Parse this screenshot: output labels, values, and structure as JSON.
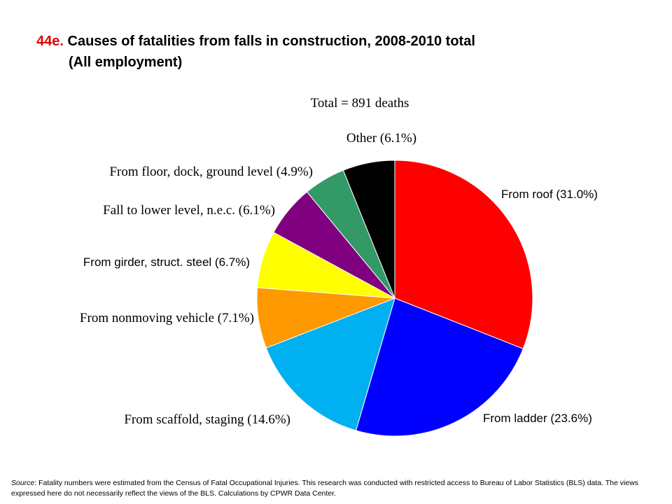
{
  "header": {
    "title_number": "44e.",
    "title_line1": "Causes of fatalities from falls in construction, 2008-2010 total",
    "title_line2": "(All employment)"
  },
  "chart_data": {
    "type": "pie",
    "title": "44e. Causes of fatalities from falls in construction, 2008-2010 total (All employment)",
    "subtitle": "Total = 891 deaths",
    "slices": [
      {
        "label": "From roof (31.0%)",
        "value": 31.0,
        "color": "#ff0000"
      },
      {
        "label": "From ladder (23.6%)",
        "value": 23.6,
        "color": "#0000ff"
      },
      {
        "label": "From scaffold, staging (14.6%)",
        "value": 14.6,
        "color": "#00b0f0"
      },
      {
        "label": "From nonmoving vehicle (7.1%)",
        "value": 7.1,
        "color": "#ff9900"
      },
      {
        "label": "From girder, struct. steel (6.7%)",
        "value": 6.7,
        "color": "#ffff00"
      },
      {
        "label": "Fall to lower level, n.e.c. (6.1%)",
        "value": 6.1,
        "color": "#800080"
      },
      {
        "label": "From floor, dock, ground level (4.9%)",
        "value": 4.9,
        "color": "#339966"
      },
      {
        "label": "Other (6.1%)",
        "value": 6.1,
        "color": "#000000"
      }
    ]
  },
  "footer": {
    "source_label": "Source",
    "source_text": ": Fatality numbers were estimated from the Census of Fatal Occupational Injuries. This research was conducted with restricted access to Bureau of Labor Statistics (BLS) data. The views expressed here do not necessarily reflect the views of the BLS. Calculations by CPWR Data Center."
  }
}
